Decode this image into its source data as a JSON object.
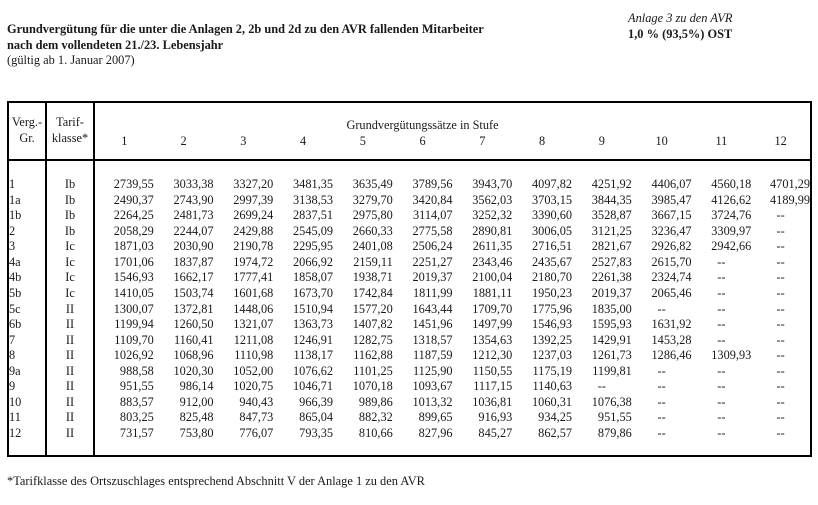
{
  "header": {
    "title_line1": "Grundvergütung für die unter die Anlagen 2, 2b und 2d zu den AVR fallenden Mitarbeiter",
    "title_line2": "nach dem vollendeten 21./23. Lebensjahr",
    "validity": "(gültig ab 1. Januar 2007)",
    "annex_label": "Anlage 3 zu den AVR",
    "rate_label": "1,0 % (93,5%) OST"
  },
  "table": {
    "col1_header_line1": "Verg.-",
    "col1_header_line2": "Gr.",
    "col2_header_line1": "Tarif-",
    "col2_header_line2": "klasse*",
    "span_header": "Grundvergütungssätze in Stufe",
    "stufen": [
      "1",
      "2",
      "3",
      "4",
      "5",
      "6",
      "7",
      "8",
      "9",
      "10",
      "11",
      "12"
    ],
    "empty_value": "--",
    "rows": [
      {
        "gr": "1",
        "klasse": "Ib",
        "values": [
          "2739,55",
          "3033,38",
          "3327,20",
          "3481,35",
          "3635,49",
          "3789,56",
          "3943,70",
          "4097,82",
          "4251,92",
          "4406,07",
          "4560,18",
          "4701,29"
        ]
      },
      {
        "gr": "1a",
        "klasse": "Ib",
        "values": [
          "2490,37",
          "2743,90",
          "2997,39",
          "3138,53",
          "3279,70",
          "3420,84",
          "3562,03",
          "3703,15",
          "3844,35",
          "3985,47",
          "4126,62",
          "4189,99"
        ]
      },
      {
        "gr": "1b",
        "klasse": "Ib",
        "values": [
          "2264,25",
          "2481,73",
          "2699,24",
          "2837,51",
          "2975,80",
          "3114,07",
          "3252,32",
          "3390,60",
          "3528,87",
          "3667,15",
          "3724,76",
          "--"
        ]
      },
      {
        "gr": "2",
        "klasse": "Ib",
        "values": [
          "2058,29",
          "2244,07",
          "2429,88",
          "2545,09",
          "2660,33",
          "2775,58",
          "2890,81",
          "3006,05",
          "3121,25",
          "3236,47",
          "3309,97",
          "--"
        ]
      },
      {
        "gr": "3",
        "klasse": "Ic",
        "values": [
          "1871,03",
          "2030,90",
          "2190,78",
          "2295,95",
          "2401,08",
          "2506,24",
          "2611,35",
          "2716,51",
          "2821,67",
          "2926,82",
          "2942,66",
          "--"
        ]
      },
      {
        "gr": "4a",
        "klasse": "Ic",
        "values": [
          "1701,06",
          "1837,87",
          "1974,72",
          "2066,92",
          "2159,11",
          "2251,27",
          "2343,46",
          "2435,67",
          "2527,83",
          "2615,70",
          "--",
          "--"
        ]
      },
      {
        "gr": "4b",
        "klasse": "Ic",
        "values": [
          "1546,93",
          "1662,17",
          "1777,41",
          "1858,07",
          "1938,71",
          "2019,37",
          "2100,04",
          "2180,70",
          "2261,38",
          "2324,74",
          "--",
          "--"
        ]
      },
      {
        "gr": "5b",
        "klasse": "Ic",
        "values": [
          "1410,05",
          "1503,74",
          "1601,68",
          "1673,70",
          "1742,84",
          "1811,99",
          "1881,11",
          "1950,23",
          "2019,37",
          "2065,46",
          "--",
          "--"
        ]
      },
      {
        "gr": "5c",
        "klasse": "II",
        "values": [
          "1300,07",
          "1372,81",
          "1448,06",
          "1510,94",
          "1577,20",
          "1643,44",
          "1709,70",
          "1775,96",
          "1835,00",
          "--",
          "--",
          "--"
        ]
      },
      {
        "gr": "6b",
        "klasse": "II",
        "values": [
          "1199,94",
          "1260,50",
          "1321,07",
          "1363,73",
          "1407,82",
          "1451,96",
          "1497,99",
          "1546,93",
          "1595,93",
          "1631,92",
          "--",
          "--"
        ]
      },
      {
        "gr": "7",
        "klasse": "II",
        "values": [
          "1109,70",
          "1160,41",
          "1211,08",
          "1246,91",
          "1282,75",
          "1318,57",
          "1354,63",
          "1392,25",
          "1429,91",
          "1453,28",
          "--",
          "--"
        ]
      },
      {
        "gr": "8",
        "klasse": "II",
        "values": [
          "1026,92",
          "1068,96",
          "1110,98",
          "1138,17",
          "1162,88",
          "1187,59",
          "1212,30",
          "1237,03",
          "1261,73",
          "1286,46",
          "1309,93",
          "--"
        ]
      },
      {
        "gr": "9a",
        "klasse": "II",
        "values": [
          "988,58",
          "1020,30",
          "1052,00",
          "1076,62",
          "1101,25",
          "1125,90",
          "1150,55",
          "1175,19",
          "1199,81",
          "--",
          "--",
          "--"
        ]
      },
      {
        "gr": "9",
        "klasse": "II",
        "values": [
          "951,55",
          "986,14",
          "1020,75",
          "1046,71",
          "1070,18",
          "1093,67",
          "1117,15",
          "1140,63",
          "--",
          "--",
          "--",
          "--"
        ]
      },
      {
        "gr": "10",
        "klasse": "II",
        "values": [
          "883,57",
          "912,00",
          "940,43",
          "966,39",
          "989,86",
          "1013,32",
          "1036,81",
          "1060,31",
          "1076,38",
          "--",
          "--",
          "--"
        ]
      },
      {
        "gr": "11",
        "klasse": "II",
        "values": [
          "803,25",
          "825,48",
          "847,73",
          "865,04",
          "882,32",
          "899,65",
          "916,93",
          "934,25",
          "951,55",
          "--",
          "--",
          "--"
        ]
      },
      {
        "gr": "12",
        "klasse": "II",
        "values": [
          "731,57",
          "753,80",
          "776,07",
          "793,35",
          "810,66",
          "827,96",
          "845,27",
          "862,57",
          "879,86",
          "--",
          "--",
          "--"
        ]
      }
    ]
  },
  "footnote": "*Tarifklasse des Ortszuschlages entsprechend Abschnitt V der Anlage 1 zu den AVR"
}
